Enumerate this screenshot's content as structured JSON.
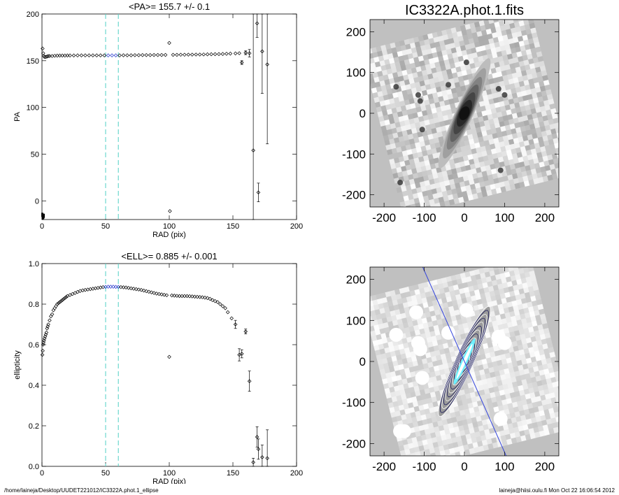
{
  "footer": {
    "path": "/home/laineja/Desktop/UUDET221012/IC3322A.phot.1_ellipse",
    "stamp": "laineja@hiisi.oulu.fi  Mon Oct 22 16:06:54 2012"
  },
  "colors": {
    "ink": "#000000",
    "fit_range": "#5fd3c9",
    "fit_points": "#2233cc",
    "image_bg": "#c0c0c0",
    "major_axis": "#3344dd",
    "inner_core": "#6ff0ff"
  },
  "chart_data": [
    {
      "type": "scatter",
      "title": "<PA>= 155.7 +/-   0.1",
      "xlabel": "RAD (pix)",
      "ylabel": "PA",
      "xlim": [
        0,
        200
      ],
      "ylim": [
        -20,
        200
      ],
      "xticks": [
        0,
        50,
        100,
        150,
        200
      ],
      "yticks": [
        0,
        50,
        100,
        150,
        200
      ],
      "fit_range": [
        50,
        60
      ],
      "grid": false,
      "points": [
        [
          0.5,
          163
        ],
        [
          1,
          158
        ],
        [
          1.5,
          155
        ],
        [
          2,
          154
        ],
        [
          3,
          154
        ],
        [
          4,
          154.5
        ],
        [
          5,
          155
        ],
        [
          6,
          155
        ],
        [
          8,
          155
        ],
        [
          10,
          155.3
        ],
        [
          12,
          155.4
        ],
        [
          14,
          155.5
        ],
        [
          16,
          155.5
        ],
        [
          18,
          155.5
        ],
        [
          20,
          155.6
        ],
        [
          22,
          155.6
        ],
        [
          25,
          155.6
        ],
        [
          28,
          155.7
        ],
        [
          31,
          155.7
        ],
        [
          34,
          155.7
        ],
        [
          37,
          155.7
        ],
        [
          40,
          155.7
        ],
        [
          43,
          155.7
        ],
        [
          46,
          155.7
        ],
        [
          49,
          155.7
        ],
        [
          52,
          155.7
        ],
        [
          55,
          155.7
        ],
        [
          58,
          155.7
        ],
        [
          61,
          155.7
        ],
        [
          64,
          155.8
        ],
        [
          67,
          155.8
        ],
        [
          70,
          155.8
        ],
        [
          73,
          155.9
        ],
        [
          76,
          155.9
        ],
        [
          79,
          156
        ],
        [
          82,
          156
        ],
        [
          85,
          156
        ],
        [
          88,
          156.1
        ],
        [
          91,
          156.1
        ],
        [
          94,
          156.1
        ],
        [
          97,
          156.2
        ],
        [
          100,
          169
        ],
        [
          100.5,
          -11
        ],
        [
          103,
          156.3
        ],
        [
          106,
          156.3
        ],
        [
          109,
          156.4
        ],
        [
          112,
          156.4
        ],
        [
          115,
          156.5
        ],
        [
          118,
          156.5
        ],
        [
          121,
          156.6
        ],
        [
          124,
          156.6
        ],
        [
          127,
          156.7
        ],
        [
          130,
          156.8
        ],
        [
          133,
          156.9
        ],
        [
          136,
          157
        ],
        [
          139,
          157.1
        ],
        [
          142,
          157.2
        ],
        [
          145,
          157.4
        ],
        [
          148,
          157.6
        ],
        [
          152,
          157.8
        ],
        [
          155,
          158
        ],
        [
          157,
          148
        ],
        [
          160,
          158.5
        ],
        [
          163,
          158
        ],
        [
          166,
          54
        ],
        [
          169,
          190
        ],
        [
          170,
          9
        ],
        [
          173,
          160
        ],
        [
          177,
          146
        ]
      ],
      "errors": [
        [
          157,
          148,
          2
        ],
        [
          160,
          158.5,
          2
        ],
        [
          163,
          158,
          4
        ],
        [
          166,
          54,
          170
        ],
        [
          169,
          190,
          15
        ],
        [
          170,
          9,
          10
        ],
        [
          173,
          160,
          45
        ],
        [
          177,
          146,
          85
        ]
      ],
      "low_points": [
        [
          0.3,
          -15
        ],
        [
          0.6,
          -18
        ],
        [
          1,
          -17
        ],
        [
          1.4,
          -16
        ]
      ]
    },
    {
      "type": "scatter",
      "title": "<ELL>= 0.885 +/-  0.001",
      "xlabel": "RAD (pix)",
      "ylabel": "ellipticity",
      "xlim": [
        0,
        200
      ],
      "ylim": [
        0,
        1
      ],
      "xticks": [
        0,
        50,
        100,
        150,
        200
      ],
      "yticks": [
        0.0,
        0.2,
        0.4,
        0.6,
        0.8,
        1.0
      ],
      "fit_range": [
        50,
        60
      ],
      "grid": false,
      "points": [
        [
          0.3,
          0.55
        ],
        [
          0.6,
          0.57
        ],
        [
          0.9,
          0.6
        ],
        [
          1.2,
          0.61
        ],
        [
          1.6,
          0.62
        ],
        [
          2,
          0.63
        ],
        [
          2.5,
          0.64
        ],
        [
          3,
          0.65
        ],
        [
          3.5,
          0.66
        ],
        [
          4,
          0.68
        ],
        [
          4.5,
          0.69
        ],
        [
          5,
          0.7
        ],
        [
          6,
          0.72
        ],
        [
          7,
          0.74
        ],
        [
          8,
          0.75
        ],
        [
          9,
          0.77
        ],
        [
          10,
          0.78
        ],
        [
          11,
          0.79
        ],
        [
          12,
          0.8
        ],
        [
          13,
          0.805
        ],
        [
          14,
          0.81
        ],
        [
          15,
          0.815
        ],
        [
          16,
          0.82
        ],
        [
          17,
          0.825
        ],
        [
          18,
          0.83
        ],
        [
          19,
          0.835
        ],
        [
          20,
          0.84
        ],
        [
          22,
          0.845
        ],
        [
          24,
          0.85
        ],
        [
          26,
          0.855
        ],
        [
          28,
          0.86
        ],
        [
          30,
          0.865
        ],
        [
          32,
          0.868
        ],
        [
          34,
          0.87
        ],
        [
          36,
          0.872
        ],
        [
          38,
          0.874
        ],
        [
          40,
          0.876
        ],
        [
          42,
          0.878
        ],
        [
          44,
          0.88
        ],
        [
          46,
          0.882
        ],
        [
          48,
          0.884
        ],
        [
          50,
          0.885
        ],
        [
          52,
          0.886
        ],
        [
          54,
          0.886
        ],
        [
          56,
          0.886
        ],
        [
          58,
          0.885
        ],
        [
          60,
          0.885
        ],
        [
          62,
          0.884
        ],
        [
          64,
          0.883
        ],
        [
          66,
          0.882
        ],
        [
          68,
          0.88
        ],
        [
          70,
          0.878
        ],
        [
          72,
          0.876
        ],
        [
          74,
          0.874
        ],
        [
          76,
          0.872
        ],
        [
          78,
          0.87
        ],
        [
          80,
          0.867
        ],
        [
          82,
          0.864
        ],
        [
          84,
          0.861
        ],
        [
          86,
          0.858
        ],
        [
          88,
          0.855
        ],
        [
          90,
          0.852
        ],
        [
          92,
          0.85
        ],
        [
          94,
          0.848
        ],
        [
          96,
          0.846
        ],
        [
          98,
          0.844
        ],
        [
          100,
          0.54
        ],
        [
          102,
          0.843
        ],
        [
          104,
          0.842
        ],
        [
          106,
          0.841
        ],
        [
          108,
          0.84
        ],
        [
          110,
          0.84
        ],
        [
          112,
          0.84
        ],
        [
          114,
          0.84
        ],
        [
          116,
          0.839
        ],
        [
          118,
          0.838
        ],
        [
          120,
          0.837
        ],
        [
          122,
          0.836
        ],
        [
          124,
          0.835
        ],
        [
          126,
          0.834
        ],
        [
          128,
          0.832
        ],
        [
          130,
          0.83
        ],
        [
          132,
          0.826
        ],
        [
          134,
          0.82
        ],
        [
          136,
          0.815
        ],
        [
          138,
          0.81
        ],
        [
          140,
          0.8
        ],
        [
          142,
          0.79
        ],
        [
          144,
          0.78
        ],
        [
          146,
          0.76
        ],
        [
          149,
          0.73
        ],
        [
          152,
          0.7
        ],
        [
          155,
          0.55
        ],
        [
          157,
          0.555
        ],
        [
          160,
          0.665
        ],
        [
          163,
          0.42
        ],
        [
          166,
          0.02
        ],
        [
          169,
          0.145
        ],
        [
          170,
          0.085
        ],
        [
          173,
          0.045
        ],
        [
          177,
          0.04
        ]
      ],
      "errors": [
        [
          152,
          0.7,
          0.02
        ],
        [
          155,
          0.55,
          0.03
        ],
        [
          157,
          0.555,
          0.02
        ],
        [
          160,
          0.665,
          0.012
        ],
        [
          163,
          0.42,
          0.05
        ],
        [
          166,
          0.02,
          0.02
        ],
        [
          169,
          0.145,
          0.05
        ],
        [
          170,
          0.085,
          0.05
        ],
        [
          173,
          0.045,
          0.06
        ],
        [
          177,
          0.04,
          0.14
        ]
      ]
    },
    {
      "type": "heatmap",
      "title": "IC3322A.phot.1.fits",
      "xlabel": "",
      "ylabel": "",
      "xlim": [
        -235,
        235
      ],
      "ylim": [
        -230,
        230
      ],
      "xticks": [
        -200,
        -100,
        0,
        100,
        200
      ],
      "yticks": [
        -200,
        -100,
        0,
        100,
        200
      ],
      "galaxy": {
        "pa": 155.7,
        "ellipticity": 0.885,
        "semi_major": 150
      },
      "bright_blobs": [
        [
          -170,
          65
        ],
        [
          -115,
          45
        ],
        [
          -110,
          30
        ],
        [
          -40,
          70
        ],
        [
          5,
          125
        ],
        [
          90,
          -140
        ],
        [
          100,
          45
        ],
        [
          85,
          60
        ],
        [
          -105,
          -40
        ],
        [
          -160,
          -170
        ]
      ]
    },
    {
      "type": "heatmap",
      "title": "",
      "xlabel": "",
      "ylabel": "",
      "xlim": [
        -235,
        235
      ],
      "ylim": [
        -230,
        230
      ],
      "xticks": [
        -200,
        -100,
        0,
        100,
        200
      ],
      "yticks": [
        -200,
        -100,
        0,
        100,
        200
      ],
      "galaxy": {
        "pa": 155.7,
        "ellipticity": 0.885,
        "semi_major": 150
      },
      "masked_blobs": [
        [
          -170,
          65
        ],
        [
          -115,
          45
        ],
        [
          -110,
          30
        ],
        [
          -40,
          70
        ],
        [
          5,
          125
        ],
        [
          90,
          -140
        ],
        [
          100,
          45
        ],
        [
          85,
          60
        ],
        [
          -105,
          -40
        ],
        [
          -160,
          -170
        ],
        [
          -150,
          -170
        ],
        [
          -120,
          120
        ]
      ],
      "contour_count": 14
    }
  ]
}
